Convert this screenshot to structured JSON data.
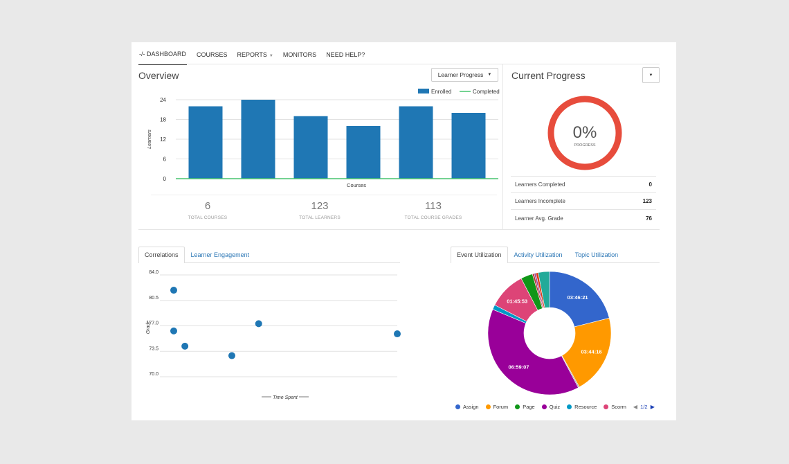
{
  "nav": {
    "items": [
      {
        "label": "DASHBOARD",
        "icon": "code-icon",
        "active": true
      },
      {
        "label": "COURSES"
      },
      {
        "label": "REPORTS",
        "has_caret": true
      },
      {
        "label": "MONITORS"
      },
      {
        "label": "NEED HELP?"
      }
    ]
  },
  "overview": {
    "title": "Overview",
    "dropdown_label": "Learner Progress",
    "stats": [
      {
        "value": "6",
        "label": "TOTAL COURSES"
      },
      {
        "value": "123",
        "label": "TOTAL LEARNERS"
      },
      {
        "value": "113",
        "label": "TOTAL COURSE GRADES"
      }
    ]
  },
  "current_progress": {
    "title": "Current Progress",
    "percent": "0%",
    "progress_fraction": 0,
    "caption": "PROGRESS",
    "ring_color": "#e74c3c",
    "rows": [
      {
        "label": "Learners Completed",
        "value": "0"
      },
      {
        "label": "Learners Incomplete",
        "value": "123"
      },
      {
        "label": "Learner Avg. Grade",
        "value": "76"
      }
    ]
  },
  "correlations": {
    "tabs": [
      {
        "label": "Correlations",
        "active": true
      },
      {
        "label": "Learner Engagement"
      }
    ]
  },
  "utilization": {
    "tabs": [
      {
        "label": "Event Utilization",
        "active": true
      },
      {
        "label": "Activity Utilization"
      },
      {
        "label": "Topic Utilization"
      }
    ],
    "pager": "1/2"
  },
  "chart_data": [
    {
      "type": "bar",
      "xlabel": "Courses",
      "ylabel": "Learners",
      "ylim": [
        0,
        24
      ],
      "yticks": [
        "0",
        "6",
        "12",
        "18",
        "24"
      ],
      "categories": [
        "",
        "",
        "",
        "",
        "",
        ""
      ],
      "series": [
        {
          "name": "Enrolled",
          "values": [
            22,
            24,
            19,
            16,
            22,
            20
          ],
          "color": "#1f77b4"
        },
        {
          "name": "Completed",
          "values": [
            0,
            0,
            0,
            0,
            0,
            0
          ],
          "color": "#2ca02c"
        }
      ],
      "legend": "top-right",
      "grid": true
    },
    {
      "type": "scatter",
      "xlabel": "Time Spent",
      "ylabel": "Grade",
      "ylim": [
        70,
        84
      ],
      "yticks": [
        "70.0",
        "73.5",
        "77.0",
        "80.5",
        "84.0"
      ],
      "xlim": [
        0,
        100
      ],
      "color": "#1f77b4",
      "points": [
        {
          "x": 0,
          "y": 81.9
        },
        {
          "x": 0,
          "y": 76.3
        },
        {
          "x": 5,
          "y": 74.2
        },
        {
          "x": 26,
          "y": 72.9
        },
        {
          "x": 38,
          "y": 77.3
        },
        {
          "x": 100,
          "y": 75.9
        }
      ],
      "grid": true
    },
    {
      "type": "pie",
      "donut": true,
      "slices": [
        {
          "label": "03:46:21",
          "value": 13581,
          "color": "#3366cc"
        },
        {
          "label": "03:44:16",
          "value": 13456,
          "color": "#ff9900"
        },
        {
          "label": "",
          "value": 200,
          "color": "#aaaaaa"
        },
        {
          "label": "06:59:07",
          "value": 25147,
          "color": "#990099"
        },
        {
          "label": "",
          "value": 800,
          "color": "#0099c6"
        },
        {
          "label": "01:45:53",
          "value": 6353,
          "color": "#dd4477"
        },
        {
          "label": "",
          "value": 2000,
          "color": "#109618"
        },
        {
          "label": "",
          "value": 300,
          "color": "#b82e2e"
        },
        {
          "label": "",
          "value": 300,
          "color": "#994499"
        },
        {
          "label": "",
          "value": 400,
          "color": "#dc3912"
        },
        {
          "label": "",
          "value": 1900,
          "color": "#22aa99"
        }
      ],
      "legend_entries": [
        {
          "name": "Assign",
          "color": "#3366cc"
        },
        {
          "name": "Forum",
          "color": "#ff9900"
        },
        {
          "name": "Page",
          "color": "#109618"
        },
        {
          "name": "Quiz",
          "color": "#990099"
        },
        {
          "name": "Resource",
          "color": "#0099c6"
        },
        {
          "name": "Scorm",
          "color": "#dd4477"
        }
      ],
      "legend": "bottom"
    }
  ]
}
